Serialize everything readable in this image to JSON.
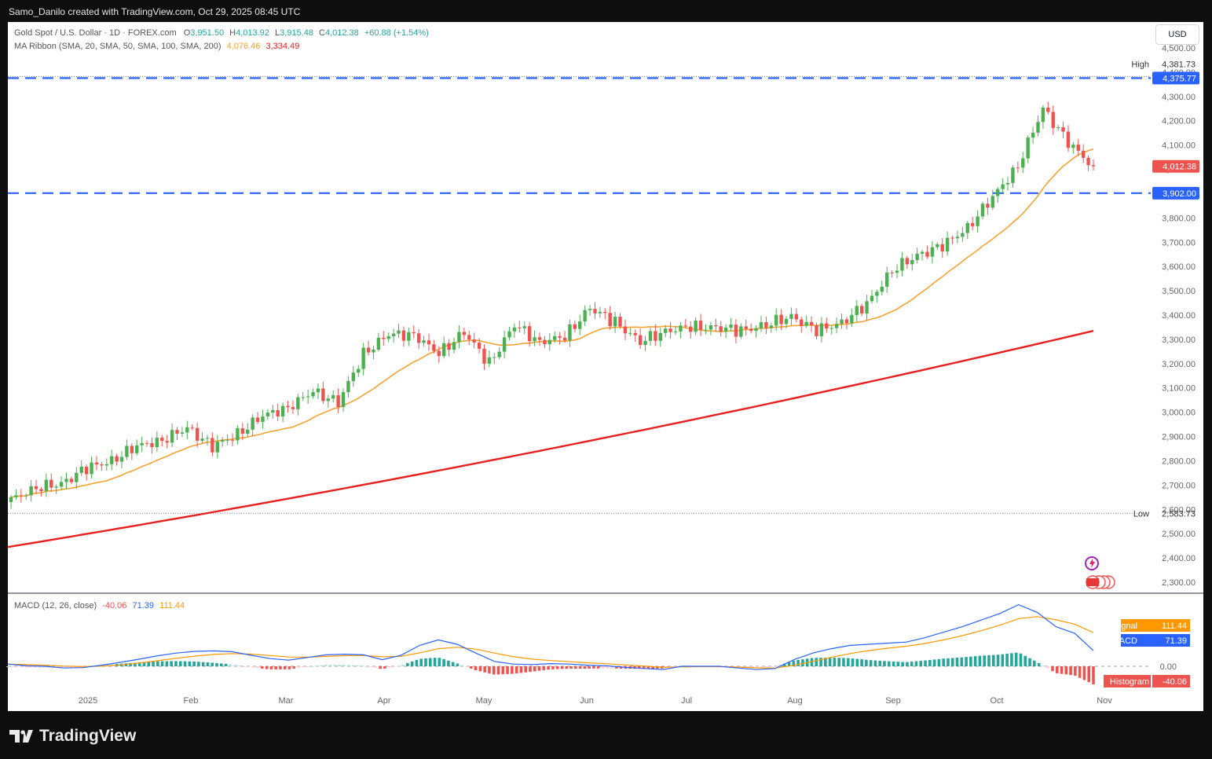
{
  "header": {
    "attribution": "Samo_Danilo created with TradingView.com, Oct 29, 2025 08:45 UTC"
  },
  "symbol": {
    "name": "Gold Spot / U.S. Dollar · 1D · FOREX.com",
    "o_label": "O",
    "o": "3,951.50",
    "h_label": "H",
    "h": "4,013.92",
    "l_label": "L",
    "l": "3,915.48",
    "c_label": "C",
    "c": "4,012.38",
    "change": "+60.88 (+1.54%)"
  },
  "ma_ribbon": {
    "label": "MA Ribbon (SMA, 20, SMA, 50, SMA, 100, SMA, 200)",
    "v1": "4,076.46",
    "v2": "3,334.49"
  },
  "currency_button": "USD",
  "macd_legend": {
    "label": "MACD (12, 26, close)",
    "hist": "-40.06",
    "macd": "71.39",
    "signal": "111.44"
  },
  "footer": {
    "brand": "TradingView"
  },
  "colors": {
    "up": "#26a69a",
    "up_green": "#4caf50",
    "down": "#ef5350",
    "sma20": "#f7a233",
    "sma200": "#e91e1e",
    "level": "#2962ff",
    "macd": "#2962ff",
    "signal": "#ff9800"
  },
  "chart_data": [
    {
      "type": "candlestick",
      "title": "Gold Spot / U.S. Dollar · 1D · FOREX.com",
      "y_axis_ticks": [
        "4,500.00",
        "4,400.00",
        "4,300.00",
        "4,200.00",
        "4,100.00",
        "4,000.00",
        "3,900.00",
        "3,800.00",
        "3,700.00",
        "3,600.00",
        "3,500.00",
        "3,400.00",
        "3,300.00",
        "3,200.00",
        "3,100.00",
        "3,000.00",
        "2,900.00",
        "2,800.00",
        "2,700.00",
        "2,600.00",
        "2,500.00",
        "2,400.00",
        "2,300.00"
      ],
      "ylim": [
        2260,
        4520
      ],
      "x_axis_ticks": [
        "2025",
        "Feb",
        "Mar",
        "Apr",
        "May",
        "Jun",
        "Jul",
        "Aug",
        "Sep",
        "Oct",
        "Nov"
      ],
      "levels": [
        {
          "label": "4,375.77",
          "value": 4375.77
        },
        {
          "label": "3,902.00",
          "value": 3902.0
        }
      ],
      "high": {
        "label": "High",
        "value": "4,381.73"
      },
      "low": {
        "label": "Low",
        "value": "2,583.73"
      },
      "last_price": {
        "label": "4,012.38",
        "value": 4012.38
      },
      "weekly_closes": [
        {
          "date": "2025-01-03",
          "close": 2640
        },
        {
          "date": "2025-01-10",
          "close": 2690
        },
        {
          "date": "2025-01-17",
          "close": 2705
        },
        {
          "date": "2025-01-24",
          "close": 2770
        },
        {
          "date": "2025-01-31",
          "close": 2800
        },
        {
          "date": "2025-02-07",
          "close": 2860
        },
        {
          "date": "2025-02-14",
          "close": 2885
        },
        {
          "date": "2025-02-21",
          "close": 2935
        },
        {
          "date": "2025-02-28",
          "close": 2858
        },
        {
          "date": "2025-03-07",
          "close": 2910
        },
        {
          "date": "2025-03-14",
          "close": 2985
        },
        {
          "date": "2025-03-21",
          "close": 3020
        },
        {
          "date": "2025-03-28",
          "close": 3085
        },
        {
          "date": "2025-04-04",
          "close": 3040
        },
        {
          "date": "2025-04-11",
          "close": 3240
        },
        {
          "date": "2025-04-18",
          "close": 3320
        },
        {
          "date": "2025-04-25",
          "close": 3320
        },
        {
          "date": "2025-05-02",
          "close": 3240
        },
        {
          "date": "2025-05-09",
          "close": 3330
        },
        {
          "date": "2025-05-16",
          "close": 3200
        },
        {
          "date": "2025-05-23",
          "close": 3360
        },
        {
          "date": "2025-05-30",
          "close": 3290
        },
        {
          "date": "2025-06-06",
          "close": 3310
        },
        {
          "date": "2025-06-13",
          "close": 3430
        },
        {
          "date": "2025-06-20",
          "close": 3370
        },
        {
          "date": "2025-06-27",
          "close": 3290
        },
        {
          "date": "2025-07-04",
          "close": 3335
        },
        {
          "date": "2025-07-11",
          "close": 3350
        },
        {
          "date": "2025-07-18",
          "close": 3350
        },
        {
          "date": "2025-07-25",
          "close": 3335
        },
        {
          "date": "2025-08-01",
          "close": 3360
        },
        {
          "date": "2025-08-08",
          "close": 3395
        },
        {
          "date": "2025-08-15",
          "close": 3335
        },
        {
          "date": "2025-08-22",
          "close": 3370
        },
        {
          "date": "2025-08-29",
          "close": 3445
        },
        {
          "date": "2025-09-05",
          "close": 3585
        },
        {
          "date": "2025-09-12",
          "close": 3645
        },
        {
          "date": "2025-09-19",
          "close": 3685
        },
        {
          "date": "2025-09-26",
          "close": 3760
        },
        {
          "date": "2025-10-03",
          "close": 3885
        },
        {
          "date": "2025-10-10",
          "close": 4015
        },
        {
          "date": "2025-10-17",
          "close": 4250
        },
        {
          "date": "2025-10-24",
          "close": 4110
        },
        {
          "date": "2025-10-29",
          "close": 4012.38
        }
      ],
      "sma_20_last": "4,076.46",
      "sma_200_last": "3,334.49"
    },
    {
      "type": "macd",
      "title": "MACD (12, 26, close)",
      "zero_label": "0.00",
      "labels": [
        {
          "label": "Signal",
          "value": "111.44"
        },
        {
          "label": "MACD",
          "value": "71.39"
        },
        {
          "label": "Histogram",
          "value": "-40.06"
        }
      ],
      "macd_series": [
        10,
        2,
        0,
        -8,
        -6,
        5,
        18,
        32,
        48,
        60,
        68,
        70,
        66,
        50,
        35,
        28,
        40,
        52,
        55,
        52,
        30,
        50,
        95,
        120,
        100,
        60,
        22,
        10,
        8,
        12,
        10,
        5,
        2,
        -5,
        -10,
        -15,
        0,
        0,
        0,
        -8,
        -15,
        -10,
        30,
        60,
        80,
        95,
        100,
        105,
        110,
        130,
        155,
        180,
        210,
        240,
        280,
        245,
        180,
        150,
        71
      ]
    }
  ]
}
